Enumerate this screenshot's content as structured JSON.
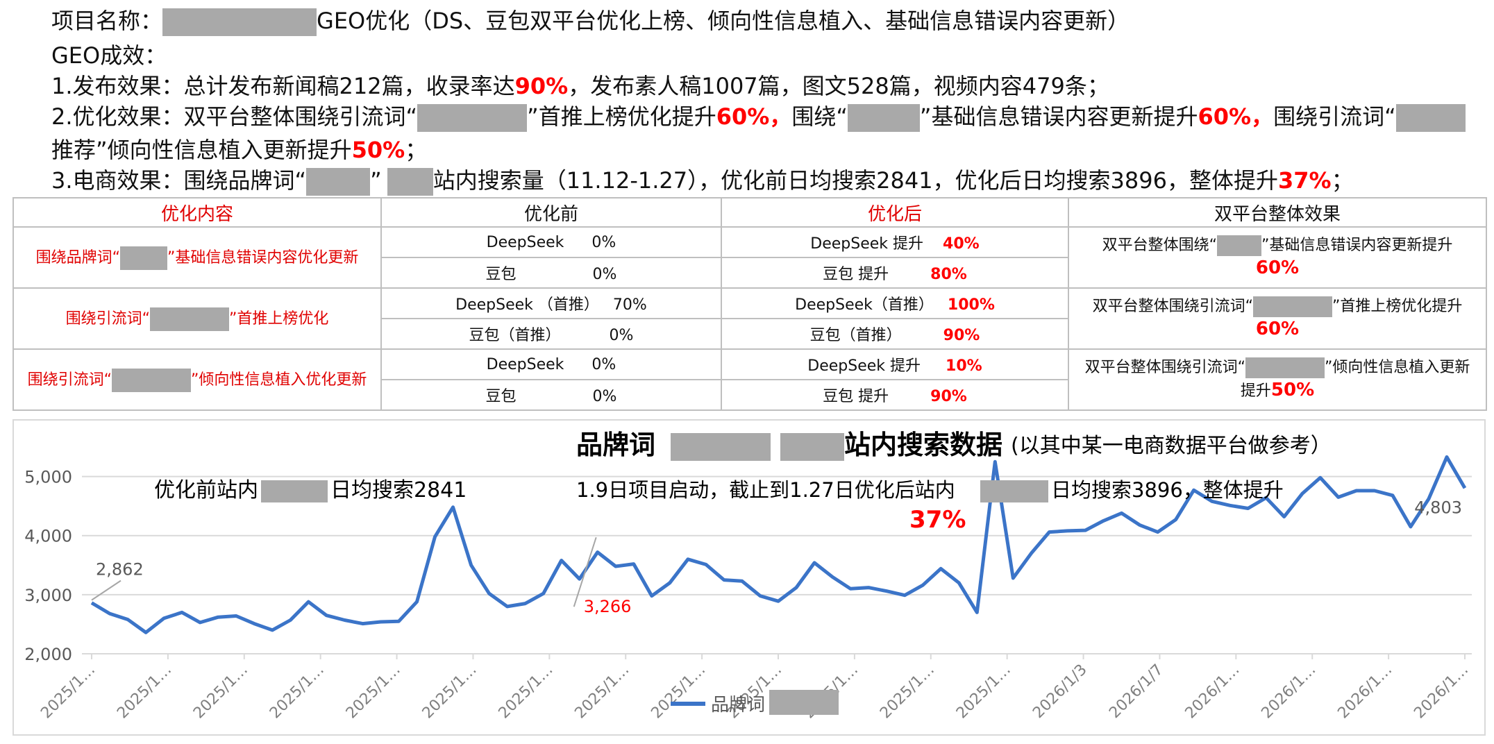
{
  "header": {
    "project_prefix": "项目名称：",
    "project_suffix": "GEO优化（DS、豆包双平台优化上榜、倾向性信息植入、基础信息错误内容更新）",
    "effect_title": "GEO成效：",
    "l1_a": "1.发布效果：总计发布新闻稿212篇，收录率达",
    "l1_b": "90%",
    "l1_c": "，发布素人稿1007篇，图文528篇，视频内容479条；",
    "l2_a": "2.优化效果：双平台整体围绕引流词“",
    "l2_b": "”首推上榜优化提升",
    "l2_c": "60%，",
    "l2_d": "围绕“",
    "l2_e": "”基础信息错误内容更新提升",
    "l2_f": "60%，",
    "l2_g": "围绕引流词“",
    "l2b_a": "推荐”倾向性信息植入更新提升",
    "l2b_b": "50%",
    "l2b_c": "；",
    "l3_a": "3.电商效果：围绕品牌词“",
    "l3_b": "”",
    "l3_c": "站内搜索量（11.12-1.27），优化前日均搜索2841，优化后日均搜索3896，整体提升",
    "l3_d": "37%",
    "l3_e": "；"
  },
  "table": {
    "headers": [
      "优化内容",
      "优化前",
      "优化后",
      "双平台整体效果"
    ],
    "rows": [
      {
        "content_a": "围绕品牌词“",
        "content_b": "”基础信息错误内容优化更新",
        "before": [
          {
            "label": "DeepSeek",
            "value": "0%"
          },
          {
            "label": "豆包",
            "value": "0%"
          }
        ],
        "after": [
          {
            "label": "DeepSeek  提升",
            "value": "40%"
          },
          {
            "label": "豆包   提升",
            "value": "80%"
          }
        ],
        "effect_a": "双平台整体围绕“",
        "effect_b": "”基础信息错误内容更新提升",
        "effect_c": "",
        "effect_pct": "60%"
      },
      {
        "content_a": "围绕引流词“",
        "content_b": "”首推上榜优化",
        "before": [
          {
            "label": "DeepSeek （首推）",
            "value": "70%"
          },
          {
            "label": "豆包（首推）",
            "value": "0%"
          }
        ],
        "after": [
          {
            "label": "DeepSeek（首推）",
            "value": "100%"
          },
          {
            "label": "豆包（首推）",
            "value": "90%"
          }
        ],
        "effect_a": "双平台整体围绕引流词“",
        "effect_b": "”首推上榜优化提升",
        "effect_c": "",
        "effect_pct": "60%"
      },
      {
        "content_a": "围绕引流词“",
        "content_b": "”倾向性信息植入优化更新",
        "before": [
          {
            "label": "DeepSeek",
            "value": "0%"
          },
          {
            "label": "豆包",
            "value": "0%"
          }
        ],
        "after": [
          {
            "label": "DeepSeek 提升",
            "value": "10%"
          },
          {
            "label": "豆包  提升",
            "value": "90%"
          }
        ],
        "effect_a": "双平台整体围绕引流词“",
        "effect_b": "”倾向性信息植入更新",
        "effect_c": "提升",
        "effect_pct": "50%"
      }
    ]
  },
  "chart_data": {
    "type": "line",
    "title_a": "品牌词",
    "title_b": "站内搜索数据",
    "title_c": "(以其中某一电商数据平台做参考）",
    "legend": "品牌词",
    "ylim": [
      2000,
      5500
    ],
    "yticks": [
      "2,000",
      "3,000",
      "4,000",
      "5,000"
    ],
    "ytick_values": [
      2000,
      3000,
      4000,
      5000
    ],
    "xtick_labels": [
      "2025/1…",
      "2025/1…",
      "2025/1…",
      "2025/1…",
      "2025/1…",
      "2025/1…",
      "2025/1…",
      "2025/1…",
      "2025/1…",
      "2025/1…",
      "2025/1…",
      "2025/1…",
      "2025/1…",
      "2026/1/3",
      "2026/1/7",
      "2026/1…",
      "2026/1…",
      "2026/1…",
      "2026/1…"
    ],
    "annotations": {
      "before_a": "优化前站内",
      "before_b": "日均搜索2841",
      "after_a": "1.9日项目启动，截止到1.27日优化后站内",
      "after_b": "日均搜索3896，整体提升",
      "after_pct": "37%",
      "label_start": "2,862",
      "label_mid": "3,266",
      "label_end": "4,803"
    },
    "colors": {
      "line": "#3b74c8",
      "grid": "#d9d9d9",
      "mid_label": "#ff0000"
    },
    "series": [
      {
        "name": "品牌词",
        "values": [
          2862,
          2680,
          2580,
          2360,
          2600,
          2700,
          2530,
          2620,
          2640,
          2510,
          2400,
          2570,
          2880,
          2650,
          2570,
          2510,
          2540,
          2550,
          2880,
          3980,
          4480,
          3500,
          3020,
          2800,
          2850,
          3020,
          3580,
          3266,
          3720,
          3480,
          3520,
          2980,
          3200,
          3600,
          3510,
          3250,
          3230,
          2980,
          2890,
          3120,
          3540,
          3300,
          3100,
          3120,
          3060,
          2990,
          3160,
          3440,
          3200,
          2700,
          5250,
          3280,
          3700,
          4060,
          4080,
          4090,
          4250,
          4380,
          4180,
          4060,
          4270,
          4770,
          4580,
          4510,
          4460,
          4640,
          4320,
          4710,
          4980,
          4650,
          4760,
          4760,
          4680,
          4150,
          4620,
          5330,
          4803
        ]
      }
    ]
  }
}
